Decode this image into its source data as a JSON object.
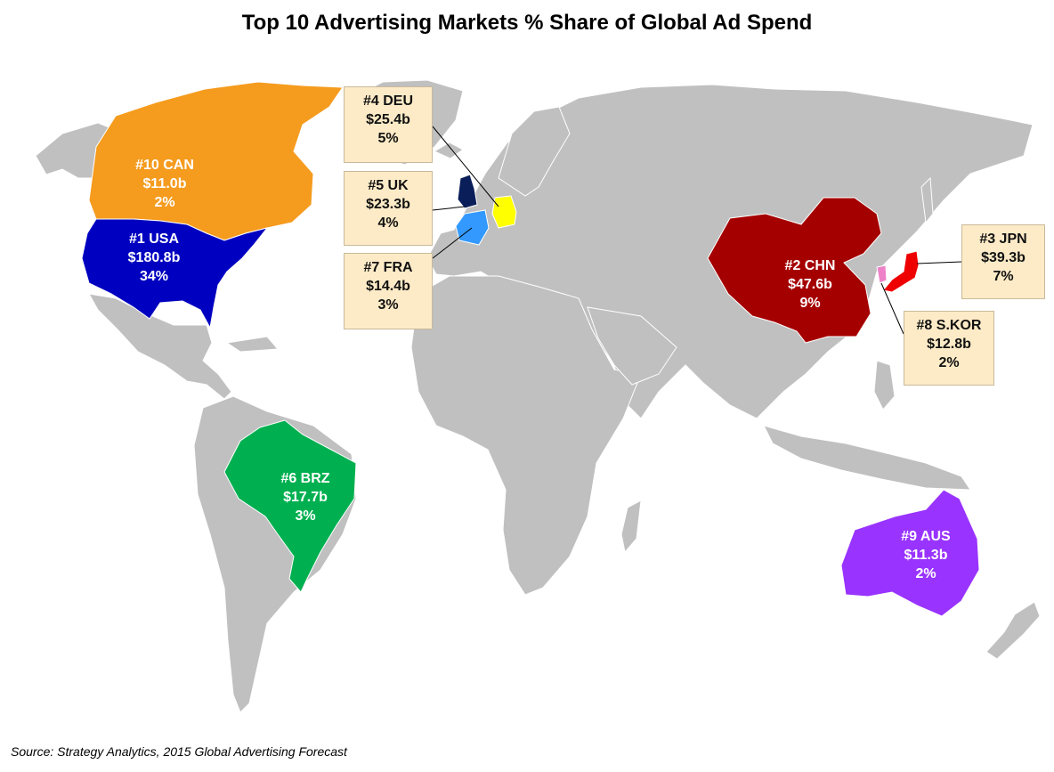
{
  "title": "Top 10 Advertising Markets % Share of Global Ad Spend",
  "source": "Source: Strategy Analytics, 2015 Global Advertising Forecast",
  "colors": {
    "land": "#c0c0c0",
    "border": "#ffffff",
    "usa": "#0000c0",
    "can": "#f59b1e",
    "brz": "#00b050",
    "chn": "#a50000",
    "jpn": "#ee0000",
    "deu": "#ffff00",
    "uk": "#0a1e5a",
    "fra": "#3399ff",
    "kor": "#ee82c8",
    "aus": "#9933ff",
    "callout_bg": "#fdebc7"
  },
  "markets": {
    "usa": {
      "rank": "#1 USA",
      "spend": "$180.8b",
      "share": "34%"
    },
    "chn": {
      "rank": "#2 CHN",
      "spend": "$47.6b",
      "share": "9%"
    },
    "jpn": {
      "rank": "#3 JPN",
      "spend": "$39.3b",
      "share": "7%"
    },
    "deu": {
      "rank": "#4 DEU",
      "spend": "$25.4b",
      "share": "5%"
    },
    "uk": {
      "rank": "#5 UK",
      "spend": "$23.3b",
      "share": "4%"
    },
    "brz": {
      "rank": "#6 BRZ",
      "spend": "$17.7b",
      "share": "3%"
    },
    "fra": {
      "rank": "#7 FRA",
      "spend": "$14.4b",
      "share": "3%"
    },
    "kor": {
      "rank": "#8 S.KOR",
      "spend": "$12.8b",
      "share": "2%"
    },
    "aus": {
      "rank": "#9 AUS",
      "spend": "$11.3b",
      "share": "2%"
    },
    "can": {
      "rank": "#10 CAN",
      "spend": "$11.0b",
      "share": "2%"
    }
  }
}
